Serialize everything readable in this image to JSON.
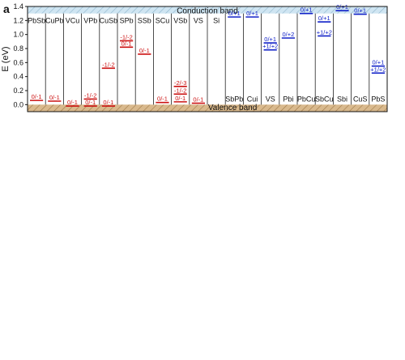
{
  "panel_letter": "a",
  "chart_data": {
    "type": "level-diagram",
    "ylabel": "E (eV)",
    "ylim": [
      -0.1,
      1.4
    ],
    "yticks": [
      0.0,
      0.2,
      0.4,
      0.6,
      0.8,
      1.0,
      1.2,
      1.4
    ],
    "band_gap": [
      0.0,
      1.3
    ],
    "conduction_band_label": "Conduction band",
    "valence_band_label": "Valence band",
    "colors": {
      "acceptor": "#cc1111",
      "donor": "#1020c8",
      "cb_fill": "#cfe5f2",
      "vb_fill": "#d9b98d"
    },
    "defects": [
      {
        "name": "PbSb",
        "side": "acceptor",
        "levels": [
          {
            "label": "0/-1",
            "e": 0.06
          }
        ]
      },
      {
        "name": "CuPb",
        "side": "acceptor",
        "levels": [
          {
            "label": "0/-1",
            "e": 0.05
          }
        ]
      },
      {
        "name": "VCu",
        "side": "acceptor",
        "levels": [
          {
            "label": "0/-1",
            "e": -0.02
          }
        ]
      },
      {
        "name": "VPb",
        "side": "acceptor",
        "levels": [
          {
            "label": "-1/-2",
            "e": 0.08
          },
          {
            "label": "0/-1",
            "e": -0.02
          }
        ]
      },
      {
        "name": "CuSb",
        "side": "acceptor",
        "levels": [
          {
            "label": "-1/-2",
            "e": 0.52
          },
          {
            "label": "0/-1",
            "e": -0.02
          }
        ]
      },
      {
        "name": "SPb",
        "side": "acceptor",
        "levels": [
          {
            "label": "-1/-2",
            "e": 0.91
          },
          {
            "label": "0/-1",
            "e": 0.82
          }
        ]
      },
      {
        "name": "SSb",
        "side": "acceptor",
        "levels": [
          {
            "label": "0/-1",
            "e": 0.72
          }
        ]
      },
      {
        "name": "SCu",
        "side": "acceptor",
        "levels": [
          {
            "label": "0/-1",
            "e": 0.03
          }
        ]
      },
      {
        "name": "VSb",
        "side": "acceptor",
        "levels": [
          {
            "label": "-2/-3",
            "e": 0.26
          },
          {
            "label": "-1/-2",
            "e": 0.15
          },
          {
            "label": "0/-1",
            "e": 0.04
          }
        ]
      },
      {
        "name": "VS",
        "side": "acceptor",
        "levels": [
          {
            "label": "0/-1",
            "e": 0.02
          }
        ]
      },
      {
        "name": "Si",
        "side": "acceptor",
        "levels": []
      },
      {
        "name": "SbPb",
        "side": "donor",
        "levels": [
          {
            "label": "0/+1",
            "e": 1.25
          }
        ]
      },
      {
        "name": "Cui",
        "side": "donor",
        "levels": [
          {
            "label": "0/+1",
            "e": 1.25
          }
        ]
      },
      {
        "name": "VS",
        "side": "donor",
        "levels": [
          {
            "label": "0/+1",
            "e": 0.88
          },
          {
            "label": "+1/+2",
            "e": 0.78
          }
        ]
      },
      {
        "name": "Pbi",
        "side": "donor",
        "levels": [
          {
            "label": "0/+2",
            "e": 0.95
          }
        ]
      },
      {
        "name": "PbCu",
        "side": "donor",
        "levels": [
          {
            "label": "0/+1",
            "e": 1.3
          }
        ]
      },
      {
        "name": "SbCu",
        "side": "donor",
        "levels": [
          {
            "label": "0/+1",
            "e": 1.18
          },
          {
            "label": "+1/+2",
            "e": 0.98
          }
        ]
      },
      {
        "name": "Sbi",
        "side": "donor",
        "levels": [
          {
            "label": "0/+1",
            "e": 1.34
          }
        ]
      },
      {
        "name": "CuS",
        "side": "donor",
        "levels": [
          {
            "label": "0/+1",
            "e": 1.29
          }
        ]
      },
      {
        "name": "PbS",
        "side": "donor",
        "levels": [
          {
            "label": "0/+1",
            "e": 0.55
          },
          {
            "label": "+1/+2",
            "e": 0.45
          }
        ]
      }
    ]
  }
}
